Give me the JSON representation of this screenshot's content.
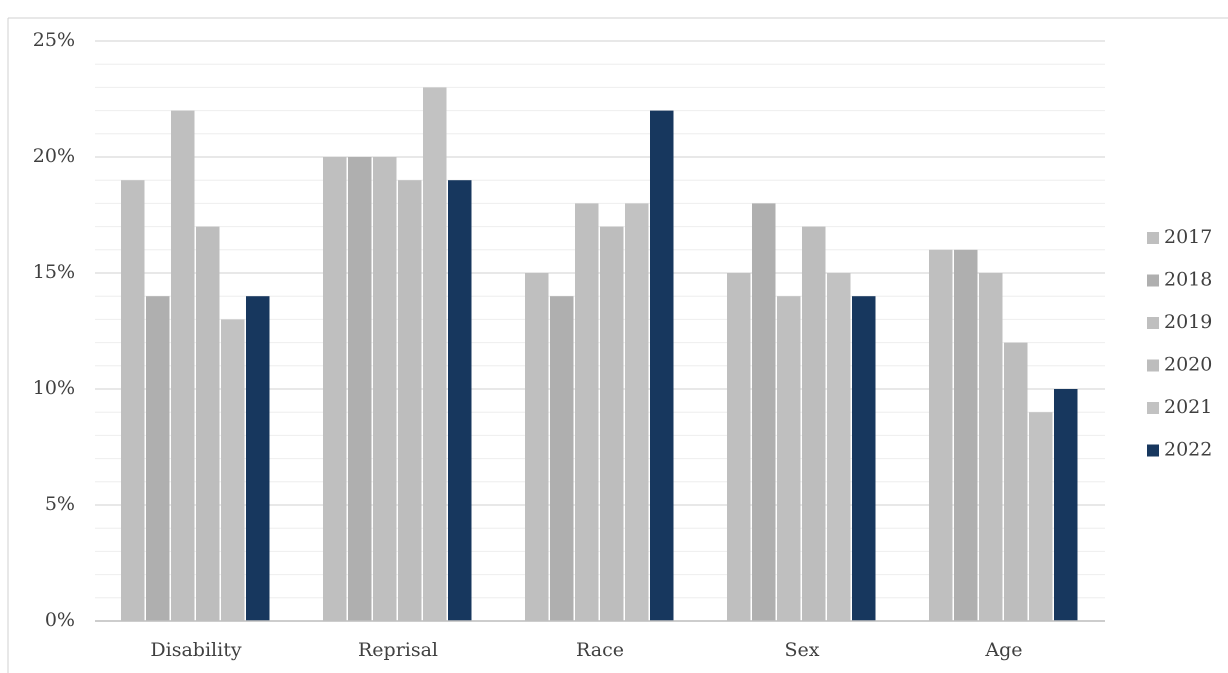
{
  "chart_data": {
    "type": "bar",
    "categories": [
      "Disability",
      "Reprisal",
      "Race",
      "Sex",
      "Age"
    ],
    "series": [
      {
        "name": "2017",
        "color": "#bfbfbf",
        "values": [
          19,
          20,
          15,
          15,
          16
        ]
      },
      {
        "name": "2018",
        "color": "#afafaf",
        "values": [
          14,
          20,
          14,
          18,
          16
        ]
      },
      {
        "name": "2019",
        "color": "#bfbfbf",
        "values": [
          22,
          20,
          18,
          14,
          15
        ]
      },
      {
        "name": "2020",
        "color": "#bdbdbd",
        "values": [
          17,
          19,
          17,
          17,
          12
        ]
      },
      {
        "name": "2021",
        "color": "#c2c2c2",
        "values": [
          13,
          23,
          18,
          15,
          9
        ]
      },
      {
        "name": "2022",
        "color": "#17375e",
        "values": [
          14,
          19,
          22,
          14,
          10
        ]
      }
    ],
    "ylim": [
      0,
      25
    ],
    "yticks": [
      {
        "value": 0,
        "label": "0%"
      },
      {
        "value": 5,
        "label": "5%"
      },
      {
        "value": 10,
        "label": "10%"
      },
      {
        "value": 15,
        "label": "15%"
      },
      {
        "value": 20,
        "label": "20%"
      },
      {
        "value": 25,
        "label": "25%"
      }
    ],
    "minor_yticks": [
      1,
      2,
      3,
      4,
      6,
      7,
      8,
      9,
      11,
      12,
      13,
      14,
      16,
      17,
      18,
      19,
      21,
      22,
      23,
      24
    ],
    "grid": true,
    "legend": "right"
  }
}
